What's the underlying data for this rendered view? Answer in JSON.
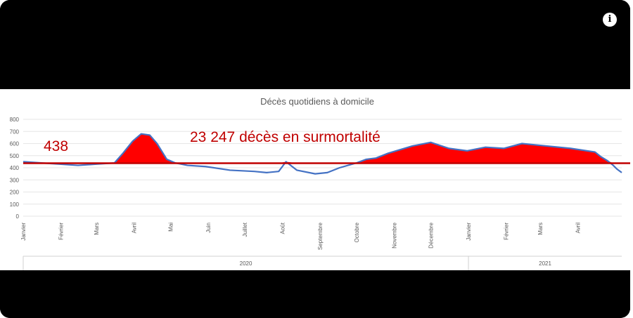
{
  "chart_data": {
    "type": "line",
    "title": "Décès quotidiens à domicile",
    "baseline_label": "438",
    "baseline_value": 438,
    "annotation": "23 247 décès en surmortalité",
    "ylim": [
      0,
      800
    ],
    "yticks": [
      0,
      100,
      200,
      300,
      400,
      500,
      600,
      700,
      800
    ],
    "grid": true,
    "months": [
      "Janvier",
      "Février",
      "Mars",
      "Avril",
      "Mai",
      "Juin",
      "Juillet",
      "Août",
      "Septembre",
      "Octobre",
      "Novembre",
      "Décembre",
      "Janvier",
      "Février",
      "Mars",
      "Avril"
    ],
    "years": [
      "2020",
      "2021"
    ],
    "series": [
      {
        "name": "",
        "x": [
          0,
          15,
          30,
          45,
          60,
          75,
          82,
          90,
          97,
          104,
          110,
          118,
          125,
          135,
          150,
          170,
          190,
          200,
          210,
          216,
          225,
          240,
          250,
          260,
          274,
          282,
          290,
          300,
          320,
          335,
          350,
          365,
          380,
          395,
          410,
          430,
          450,
          470,
          475,
          480,
          485,
          488,
          492
        ],
        "values": [
          450,
          440,
          430,
          420,
          430,
          440,
          520,
          620,
          680,
          670,
          600,
          470,
          440,
          420,
          410,
          380,
          370,
          360,
          370,
          450,
          380,
          350,
          360,
          400,
          440,
          470,
          480,
          520,
          580,
          610,
          560,
          540,
          570,
          560,
          600,
          580,
          560,
          530,
          490,
          460,
          420,
          390,
          360
        ]
      }
    ],
    "colors": {
      "line": "#4472c4",
      "baseline": "#c00000",
      "fill": "#ff0000",
      "annotation_text": "#c00000"
    }
  }
}
